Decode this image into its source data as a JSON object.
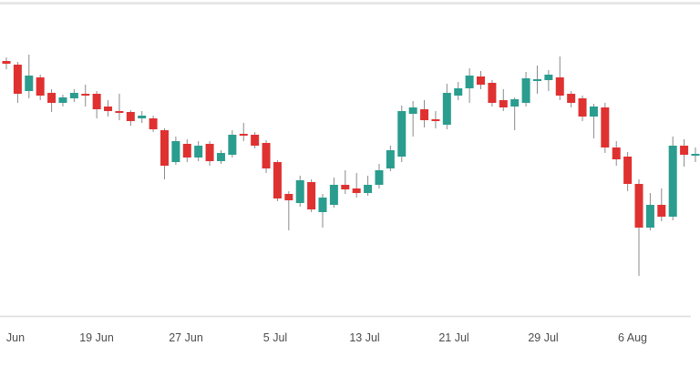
{
  "chart_data": {
    "type": "candlestick",
    "title": "",
    "subtitle": "",
    "legend": false,
    "grid": false,
    "y_axis_shown": false,
    "value_scale": "relative units (chart displays no y-axis); values estimated from candle geometry",
    "ylim": [
      50,
      310
    ],
    "x_axis": {
      "tick_labels": [
        "Jun",
        "19 Jun",
        "27 Jun",
        "5 Jul",
        "13 Jul",
        "21 Jul",
        "29 Jul",
        "6 Aug"
      ],
      "tick_centers": [
        17,
        106,
        204,
        302,
        400,
        498,
        596,
        694
      ]
    },
    "colors": {
      "up": "#2a9d8f",
      "down": "#e03131",
      "wick": "#8a8a8a",
      "axis_line": "#dcdcdc",
      "tick_text": "#4d4d4d",
      "top_border": "#e7e7e7",
      "background": "#ffffff"
    },
    "candles": [
      {
        "date": "11 Jun",
        "open": 293,
        "high": 297,
        "low": 284,
        "close": 290
      },
      {
        "date": "12 Jun",
        "open": 289,
        "high": 292,
        "low": 247,
        "close": 257
      },
      {
        "date": "13 Jun",
        "open": 260,
        "high": 300,
        "low": 252,
        "close": 277
      },
      {
        "date": "14 Jun",
        "open": 275,
        "high": 278,
        "low": 250,
        "close": 255
      },
      {
        "date": "15 Jun",
        "open": 258,
        "high": 262,
        "low": 237,
        "close": 247
      },
      {
        "date": "16 Jun",
        "open": 247,
        "high": 256,
        "low": 243,
        "close": 253
      },
      {
        "date": "17 Jun",
        "open": 252,
        "high": 262,
        "low": 248,
        "close": 258
      },
      {
        "date": "18 Jun",
        "open": 257,
        "high": 267,
        "low": 243,
        "close": 255
      },
      {
        "date": "19 Jun",
        "open": 257,
        "high": 260,
        "low": 230,
        "close": 240
      },
      {
        "date": "20 Jun",
        "open": 243,
        "high": 250,
        "low": 232,
        "close": 238
      },
      {
        "date": "21 Jun",
        "open": 238,
        "high": 257,
        "low": 228,
        "close": 236
      },
      {
        "date": "22 Jun",
        "open": 237,
        "high": 239,
        "low": 222,
        "close": 227
      },
      {
        "date": "23 Jun",
        "open": 230,
        "high": 238,
        "low": 225,
        "close": 233
      },
      {
        "date": "24 Jun",
        "open": 230,
        "high": 233,
        "low": 215,
        "close": 218
      },
      {
        "date": "25 Jun",
        "open": 217,
        "high": 219,
        "low": 163,
        "close": 178
      },
      {
        "date": "26 Jun",
        "open": 182,
        "high": 210,
        "low": 179,
        "close": 205
      },
      {
        "date": "27 Jun",
        "open": 202,
        "high": 207,
        "low": 182,
        "close": 187
      },
      {
        "date": "28 Jun",
        "open": 187,
        "high": 205,
        "low": 183,
        "close": 200
      },
      {
        "date": "29 Jun",
        "open": 202,
        "high": 205,
        "low": 178,
        "close": 183
      },
      {
        "date": "30 Jun",
        "open": 183,
        "high": 195,
        "low": 180,
        "close": 192
      },
      {
        "date": "1 Jul",
        "open": 190,
        "high": 217,
        "low": 187,
        "close": 212
      },
      {
        "date": "2 Jul",
        "open": 213,
        "high": 225,
        "low": 205,
        "close": 211
      },
      {
        "date": "3 Jul",
        "open": 212,
        "high": 215,
        "low": 197,
        "close": 200
      },
      {
        "date": "4 Jul",
        "open": 203,
        "high": 206,
        "low": 170,
        "close": 175
      },
      {
        "date": "5 Jul",
        "open": 182,
        "high": 184,
        "low": 139,
        "close": 142
      },
      {
        "date": "6 Jul",
        "open": 147,
        "high": 150,
        "low": 107,
        "close": 140
      },
      {
        "date": "7 Jul",
        "open": 137,
        "high": 167,
        "low": 133,
        "close": 162
      },
      {
        "date": "8 Jul",
        "open": 160,
        "high": 163,
        "low": 127,
        "close": 130
      },
      {
        "date": "9 Jul",
        "open": 127,
        "high": 147,
        "low": 110,
        "close": 143
      },
      {
        "date": "10 Jul",
        "open": 135,
        "high": 165,
        "low": 132,
        "close": 157
      },
      {
        "date": "11 Jul",
        "open": 157,
        "high": 173,
        "low": 147,
        "close": 152
      },
      {
        "date": "12 Jul",
        "open": 153,
        "high": 170,
        "low": 143,
        "close": 148
      },
      {
        "date": "13 Jul",
        "open": 148,
        "high": 167,
        "low": 145,
        "close": 157
      },
      {
        "date": "14 Jul",
        "open": 157,
        "high": 180,
        "low": 153,
        "close": 173
      },
      {
        "date": "15 Jul",
        "open": 175,
        "high": 200,
        "low": 172,
        "close": 195
      },
      {
        "date": "16 Jul",
        "open": 188,
        "high": 244,
        "low": 182,
        "close": 238
      },
      {
        "date": "17 Jul",
        "open": 235,
        "high": 249,
        "low": 210,
        "close": 242
      },
      {
        "date": "18 Jul",
        "open": 240,
        "high": 250,
        "low": 220,
        "close": 228
      },
      {
        "date": "19 Jul",
        "open": 229,
        "high": 238,
        "low": 219,
        "close": 227
      },
      {
        "date": "20 Jul",
        "open": 223,
        "high": 268,
        "low": 218,
        "close": 258
      },
      {
        "date": "21 Jul",
        "open": 255,
        "high": 270,
        "low": 250,
        "close": 263
      },
      {
        "date": "22 Jul",
        "open": 263,
        "high": 285,
        "low": 247,
        "close": 277
      },
      {
        "date": "23 Jul",
        "open": 276,
        "high": 282,
        "low": 262,
        "close": 267
      },
      {
        "date": "24 Jul",
        "open": 269,
        "high": 272,
        "low": 243,
        "close": 247
      },
      {
        "date": "25 Jul",
        "open": 250,
        "high": 262,
        "low": 238,
        "close": 242
      },
      {
        "date": "26 Jul",
        "open": 243,
        "high": 253,
        "low": 217,
        "close": 251
      },
      {
        "date": "27 Jul",
        "open": 247,
        "high": 281,
        "low": 243,
        "close": 274
      },
      {
        "date": "28 Jul",
        "open": 271,
        "high": 288,
        "low": 257,
        "close": 273
      },
      {
        "date": "29 Jul",
        "open": 272,
        "high": 283,
        "low": 260,
        "close": 278
      },
      {
        "date": "30 Jul",
        "open": 275,
        "high": 298,
        "low": 250,
        "close": 255
      },
      {
        "date": "31 Jul",
        "open": 257,
        "high": 260,
        "low": 242,
        "close": 247
      },
      {
        "date": "1 Aug",
        "open": 252,
        "high": 255,
        "low": 227,
        "close": 232
      },
      {
        "date": "2 Aug",
        "open": 232,
        "high": 246,
        "low": 208,
        "close": 243
      },
      {
        "date": "3 Aug",
        "open": 242,
        "high": 247,
        "low": 192,
        "close": 198
      },
      {
        "date": "4 Aug",
        "open": 198,
        "high": 205,
        "low": 178,
        "close": 185
      },
      {
        "date": "5 Aug",
        "open": 188,
        "high": 193,
        "low": 150,
        "close": 158
      },
      {
        "date": "6 Aug",
        "open": 158,
        "high": 163,
        "low": 57,
        "close": 110
      },
      {
        "date": "7 Aug",
        "open": 110,
        "high": 148,
        "low": 107,
        "close": 135
      },
      {
        "date": "8 Aug",
        "open": 135,
        "high": 153,
        "low": 117,
        "close": 122
      },
      {
        "date": "9 Aug",
        "open": 122,
        "high": 210,
        "low": 118,
        "close": 200
      },
      {
        "date": "10 Aug",
        "open": 200,
        "high": 207,
        "low": 177,
        "close": 190
      },
      {
        "date": "11 Aug",
        "open": 189,
        "high": 198,
        "low": 182,
        "close": 191
      }
    ]
  }
}
